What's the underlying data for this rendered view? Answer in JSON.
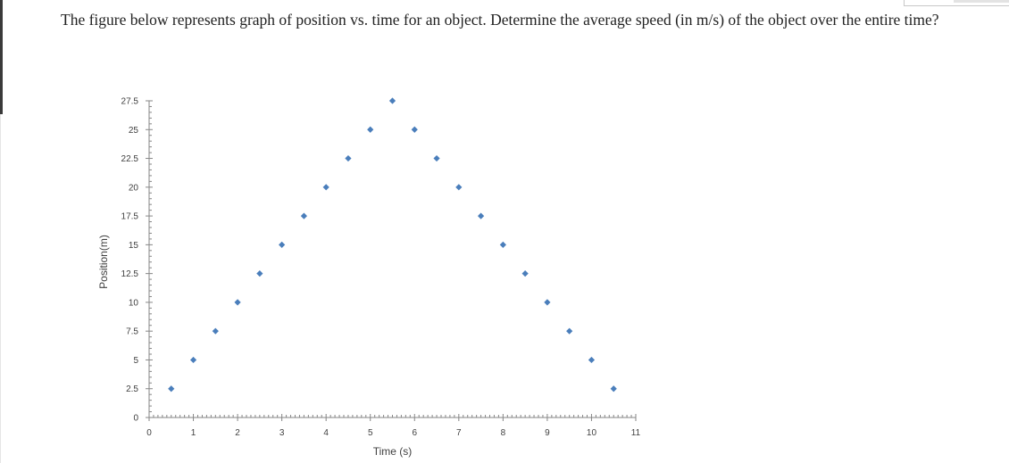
{
  "question": {
    "text": "The figure below represents graph of position vs. time for an object. Determine the average speed  (in m/s) of the object over the entire time?"
  },
  "chart_data": {
    "type": "scatter",
    "title": "",
    "xlabel": "Time (s)",
    "ylabel": "Position(m)",
    "xlim": [
      0,
      11
    ],
    "ylim": [
      0,
      27.5
    ],
    "x_ticks": [
      "0",
      "1",
      "2",
      "3",
      "4",
      "5",
      "6",
      "7",
      "8",
      "9",
      "10",
      "11"
    ],
    "y_ticks": [
      "0",
      "2.5",
      "5",
      "7.5",
      "10",
      "12.5",
      "15",
      "17.5",
      "20",
      "22.5",
      "25",
      "27.5"
    ],
    "grid": false,
    "legend": "none",
    "marker": "diamond",
    "marker_color": "#4a7ebb",
    "series": [
      {
        "x": [
          0.5,
          1,
          1.5,
          2,
          2.5,
          3,
          3.5,
          4,
          4.5,
          5,
          5.5,
          6,
          6.5,
          7,
          7.5,
          8,
          8.5,
          9,
          9.5,
          10,
          10.5
        ],
        "y": [
          2.5,
          5,
          7.5,
          10,
          12.5,
          15,
          17.5,
          20,
          22.5,
          25,
          27.5,
          25,
          22.5,
          20,
          17.5,
          15,
          12.5,
          10,
          7.5,
          5,
          2.5
        ]
      }
    ]
  }
}
